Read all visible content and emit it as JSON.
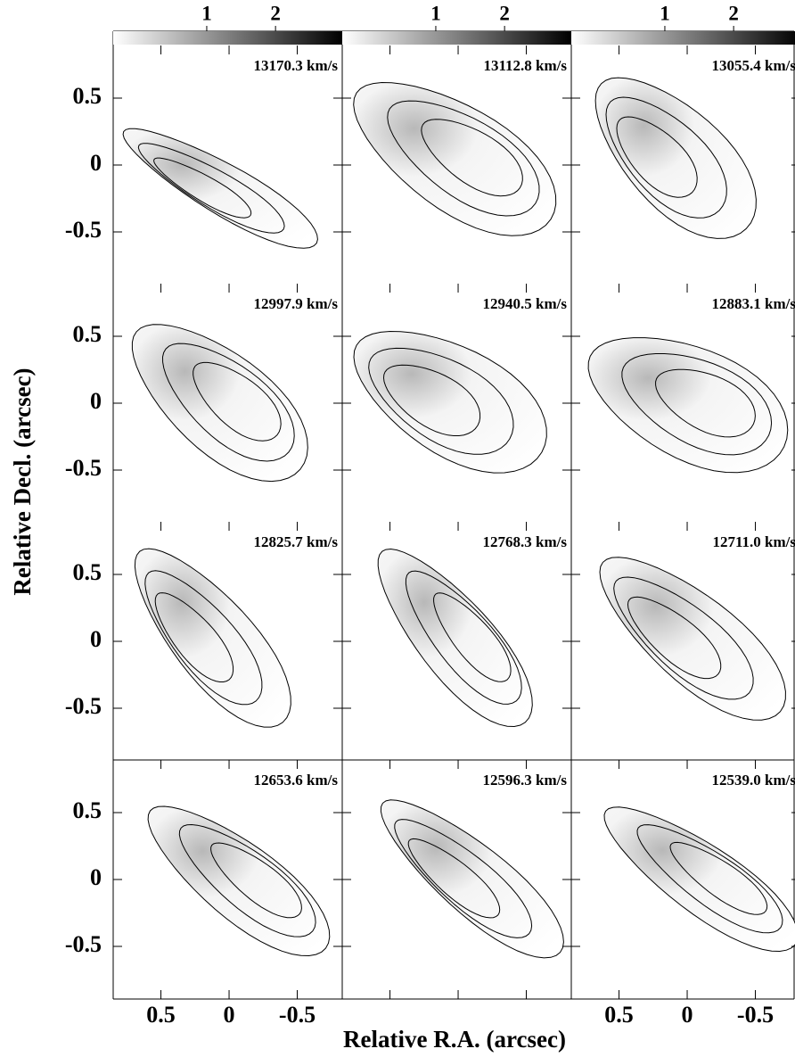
{
  "chart_data": {
    "type": "channel-map",
    "xlabel": "Relative R.A. (arcsec)",
    "ylabel": "Relative Decl. (arcsec)",
    "xlim": [
      0.85,
      -0.83
    ],
    "xticks": [
      0.5,
      0,
      -0.5
    ],
    "ylim": [
      -0.78,
      1.0
    ],
    "yticks": [
      0.5,
      0,
      -0.5
    ],
    "colorbar": {
      "lim": [
        -0.36,
        2.97
      ],
      "ticks": [
        1,
        2
      ]
    },
    "panels": [
      {
        "label": "13170.3 km/s"
      },
      {
        "label": "13112.8 km/s"
      },
      {
        "label": "13055.4 km/s"
      },
      {
        "label": "12997.9 km/s"
      },
      {
        "label": "12940.5 km/s"
      },
      {
        "label": "12883.1 km/s"
      },
      {
        "label": "12825.7 km/s"
      },
      {
        "label": "12768.3 km/s"
      },
      {
        "label": "12711.0 km/s"
      },
      {
        "label": "12653.6 km/s"
      },
      {
        "label": "12596.3 km/s"
      },
      {
        "label": "12539.0 km/s"
      }
    ]
  }
}
